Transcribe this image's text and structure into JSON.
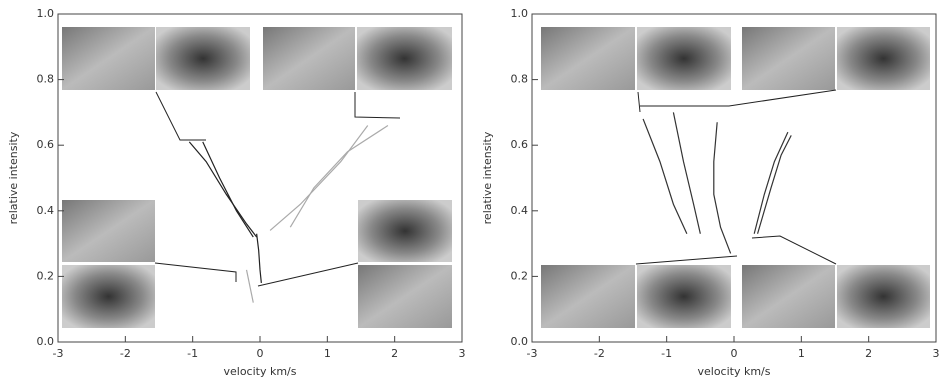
{
  "chart_data": [
    {
      "type": "line",
      "xlabel": "velocity km/s",
      "ylabel": "relative intensity",
      "xlim": [
        -3,
        3
      ],
      "ylim": [
        0,
        1
      ],
      "xticks": [
        -3,
        -2,
        -1,
        0,
        1,
        2,
        3
      ],
      "yticks": [
        {
          "value": 0,
          "label": "0.0"
        },
        {
          "value": 0.2,
          "label": "0.2"
        },
        {
          "value": 0.4,
          "label": "0.4"
        },
        {
          "value": 0.6,
          "label": "0.6"
        },
        {
          "value": 0.8,
          "label": "0.8"
        },
        {
          "value": 1,
          "label": "1.0"
        }
      ],
      "series": [
        {
          "color": "#222222",
          "x": [
            -1.05,
            -0.8,
            -0.5,
            -0.2,
            -0.05
          ],
          "values": [
            0.61,
            0.55,
            0.45,
            0.36,
            0.32
          ]
        },
        {
          "color": "#222222",
          "x": [
            -0.85,
            -0.6,
            -0.35,
            -0.1
          ],
          "values": [
            0.61,
            0.5,
            0.4,
            0.32
          ]
        },
        {
          "color": "#222222",
          "x": [
            -0.05,
            -0.02,
            0.0,
            0.02
          ],
          "values": [
            0.33,
            0.28,
            0.22,
            0.18
          ]
        },
        {
          "color": "#aaaaaa",
          "x": [
            0.15,
            0.6,
            1.2,
            1.6
          ],
          "values": [
            0.34,
            0.42,
            0.55,
            0.66
          ]
        },
        {
          "color": "#aaaaaa",
          "x": [
            0.45,
            0.8,
            1.3,
            1.9
          ],
          "values": [
            0.35,
            0.47,
            0.58,
            0.66
          ]
        },
        {
          "color": "#aaaaaa",
          "x": [
            -0.2,
            -0.15,
            -0.1
          ],
          "values": [
            0.22,
            0.17,
            0.12
          ]
        }
      ]
    },
    {
      "type": "line",
      "xlabel": "velocity km/s",
      "ylabel": "relative intensity",
      "xlim": [
        -3,
        3
      ],
      "ylim": [
        0,
        1
      ],
      "xticks": [
        -3,
        -2,
        -1,
        0,
        1,
        2,
        3
      ],
      "yticks": [
        {
          "value": 0,
          "label": "0.0"
        },
        {
          "value": 0.2,
          "label": "0.2"
        },
        {
          "value": 0.4,
          "label": "0.4"
        },
        {
          "value": 0.6,
          "label": "0.6"
        },
        {
          "value": 0.8,
          "label": "0.8"
        },
        {
          "value": 1,
          "label": "1.0"
        }
      ],
      "series": [
        {
          "color": "#333333",
          "x": [
            -1.35,
            -1.1,
            -0.9,
            -0.7
          ],
          "values": [
            0.68,
            0.55,
            0.42,
            0.33
          ]
        },
        {
          "color": "#333333",
          "x": [
            -0.9,
            -0.75,
            -0.6,
            -0.5
          ],
          "values": [
            0.7,
            0.55,
            0.42,
            0.33
          ]
        },
        {
          "color": "#333333",
          "x": [
            -0.25,
            -0.3,
            -0.3,
            -0.2,
            -0.05
          ],
          "values": [
            0.67,
            0.55,
            0.45,
            0.35,
            0.27
          ]
        },
        {
          "color": "#333333",
          "x": [
            0.3,
            0.45,
            0.6,
            0.8
          ],
          "values": [
            0.33,
            0.45,
            0.55,
            0.64
          ]
        },
        {
          "color": "#333333",
          "x": [
            0.35,
            0.55,
            0.7,
            0.85
          ],
          "values": [
            0.33,
            0.47,
            0.57,
            0.63
          ]
        }
      ]
    }
  ]
}
